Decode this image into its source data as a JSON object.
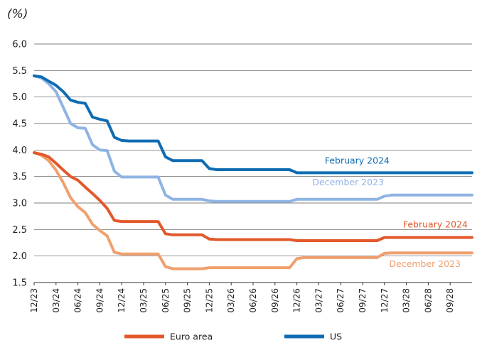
{
  "chart_data": {
    "type": "line",
    "unit_label": "(%)",
    "title": "",
    "xlabel": "",
    "ylabel": "",
    "ylim": [
      1.5,
      6.0
    ],
    "yticks": [
      "1.5",
      "2.0",
      "2.5",
      "3.0",
      "3.5",
      "4.0",
      "4.5",
      "5.0",
      "5.5",
      "6.0"
    ],
    "grid": "horizontal",
    "x_range_months": [
      "2023-12",
      "2028-12"
    ],
    "xticks": [
      "12/23",
      "03/24",
      "06/24",
      "09/24",
      "12/24",
      "03/25",
      "06/25",
      "09/25",
      "12/25",
      "03/26",
      "06/26",
      "09/26",
      "12/26",
      "03/27",
      "06/27",
      "09/27",
      "12/27",
      "03/28",
      "06/28",
      "09/28"
    ],
    "legend": {
      "placement": "bottom",
      "items": [
        {
          "name": "Euro area",
          "color": "#e2582b"
        },
        {
          "name": "US",
          "color": "#0f6cb3"
        }
      ]
    },
    "series": [
      {
        "region": "US",
        "label": "February 2024",
        "color": "#0f6cb3",
        "points": [
          [
            "2023-12",
            5.4
          ],
          [
            "2024-01",
            5.38
          ],
          [
            "2024-02",
            5.3
          ],
          [
            "2024-03",
            5.22
          ],
          [
            "2024-04",
            5.1
          ],
          [
            "2024-05",
            4.94
          ],
          [
            "2024-06",
            4.9
          ],
          [
            "2024-07",
            4.88
          ],
          [
            "2024-08",
            4.62
          ],
          [
            "2024-09",
            4.58
          ],
          [
            "2024-10",
            4.55
          ],
          [
            "2024-11",
            4.24
          ],
          [
            "2024-12",
            4.18
          ],
          [
            "2025-01",
            4.17
          ],
          [
            "2025-05",
            4.17
          ],
          [
            "2025-06",
            3.87
          ],
          [
            "2025-07",
            3.8
          ],
          [
            "2025-11",
            3.8
          ],
          [
            "2025-12",
            3.65
          ],
          [
            "2026-01",
            3.63
          ],
          [
            "2026-11",
            3.63
          ],
          [
            "2026-12",
            3.57
          ],
          [
            "2028-12",
            3.57
          ]
        ]
      },
      {
        "region": "US",
        "label": "December 2023",
        "color": "#8fb4e3",
        "points": [
          [
            "2023-12",
            5.4
          ],
          [
            "2024-01",
            5.36
          ],
          [
            "2024-02",
            5.25
          ],
          [
            "2024-03",
            5.1
          ],
          [
            "2024-04",
            4.8
          ],
          [
            "2024-05",
            4.5
          ],
          [
            "2024-06",
            4.42
          ],
          [
            "2024-07",
            4.41
          ],
          [
            "2024-08",
            4.1
          ],
          [
            "2024-09",
            4.0
          ],
          [
            "2024-10",
            3.99
          ],
          [
            "2024-11",
            3.6
          ],
          [
            "2024-12",
            3.49
          ],
          [
            "2025-05",
            3.49
          ],
          [
            "2025-06",
            3.15
          ],
          [
            "2025-07",
            3.07
          ],
          [
            "2025-11",
            3.07
          ],
          [
            "2025-12",
            3.04
          ],
          [
            "2026-01",
            3.03
          ],
          [
            "2026-11",
            3.03
          ],
          [
            "2026-12",
            3.07
          ],
          [
            "2027-11",
            3.07
          ],
          [
            "2027-12",
            3.13
          ],
          [
            "2028-01",
            3.15
          ],
          [
            "2028-12",
            3.15
          ]
        ]
      },
      {
        "region": "Euro area",
        "label": "February 2024",
        "color": "#e2582b",
        "points": [
          [
            "2023-12",
            3.95
          ],
          [
            "2024-01",
            3.92
          ],
          [
            "2024-02",
            3.87
          ],
          [
            "2024-03",
            3.75
          ],
          [
            "2024-04",
            3.62
          ],
          [
            "2024-05",
            3.5
          ],
          [
            "2024-06",
            3.43
          ],
          [
            "2024-07",
            3.3
          ],
          [
            "2024-08",
            3.18
          ],
          [
            "2024-09",
            3.05
          ],
          [
            "2024-10",
            2.9
          ],
          [
            "2024-11",
            2.67
          ],
          [
            "2024-12",
            2.65
          ],
          [
            "2025-05",
            2.65
          ],
          [
            "2025-06",
            2.42
          ],
          [
            "2025-07",
            2.4
          ],
          [
            "2025-11",
            2.4
          ],
          [
            "2025-12",
            2.32
          ],
          [
            "2026-01",
            2.31
          ],
          [
            "2026-11",
            2.31
          ],
          [
            "2026-12",
            2.29
          ],
          [
            "2027-11",
            2.29
          ],
          [
            "2027-12",
            2.35
          ],
          [
            "2028-12",
            2.35
          ]
        ]
      },
      {
        "region": "Euro area",
        "label": "December 2023",
        "color": "#f0a06e",
        "points": [
          [
            "2023-12",
            3.95
          ],
          [
            "2024-01",
            3.9
          ],
          [
            "2024-02",
            3.8
          ],
          [
            "2024-03",
            3.62
          ],
          [
            "2024-04",
            3.38
          ],
          [
            "2024-05",
            3.1
          ],
          [
            "2024-06",
            2.93
          ],
          [
            "2024-07",
            2.82
          ],
          [
            "2024-08",
            2.6
          ],
          [
            "2024-09",
            2.48
          ],
          [
            "2024-10",
            2.38
          ],
          [
            "2024-11",
            2.07
          ],
          [
            "2024-12",
            2.04
          ],
          [
            "2025-05",
            2.04
          ],
          [
            "2025-06",
            1.8
          ],
          [
            "2025-07",
            1.76
          ],
          [
            "2025-11",
            1.76
          ],
          [
            "2025-12",
            1.78
          ],
          [
            "2026-01",
            1.78
          ],
          [
            "2026-11",
            1.78
          ],
          [
            "2026-12",
            1.95
          ],
          [
            "2027-01",
            1.97
          ],
          [
            "2027-11",
            1.97
          ],
          [
            "2027-12",
            2.05
          ],
          [
            "2028-01",
            2.06
          ],
          [
            "2028-12",
            2.06
          ]
        ]
      }
    ]
  }
}
